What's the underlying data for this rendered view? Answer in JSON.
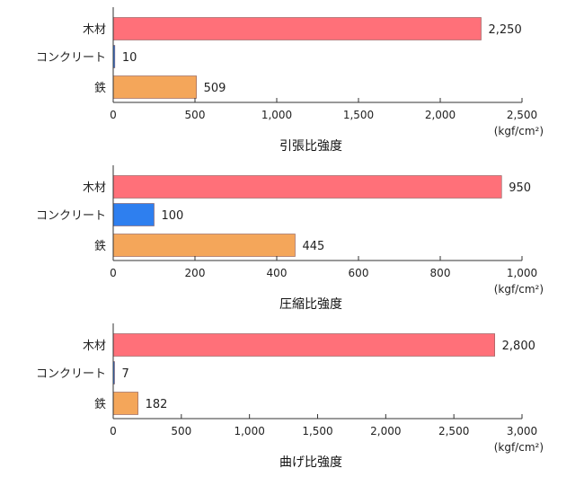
{
  "colors": {
    "wood": "#ff7079",
    "concrete": "#2e7fef",
    "iron": "#f4a65a",
    "axis": "#333333",
    "bar_stroke": "#8a5a5a"
  },
  "chart_data": [
    {
      "type": "bar",
      "orientation": "horizontal",
      "title": "引張比強度",
      "unit": "(kgf/cm²)",
      "categories": [
        "木材",
        "コンクリート",
        "鉄"
      ],
      "values": [
        2250,
        10,
        509
      ],
      "value_labels": [
        "2,250",
        "10",
        "509"
      ],
      "xlim": [
        0,
        2500
      ],
      "ticks": [
        0,
        500,
        1000,
        1500,
        2000,
        2500
      ],
      "tick_labels": [
        "0",
        "500",
        "1,000",
        "1,500",
        "2,000",
        "2,500"
      ],
      "grid": false
    },
    {
      "type": "bar",
      "orientation": "horizontal",
      "title": "圧縮比強度",
      "unit": "(kgf/cm²)",
      "categories": [
        "木材",
        "コンクリート",
        "鉄"
      ],
      "values": [
        950,
        100,
        445
      ],
      "value_labels": [
        "950",
        "100",
        "445"
      ],
      "xlim": [
        0,
        1000
      ],
      "ticks": [
        0,
        200,
        400,
        600,
        800,
        1000
      ],
      "tick_labels": [
        "0",
        "200",
        "400",
        "600",
        "800",
        "1,000"
      ],
      "grid": false
    },
    {
      "type": "bar",
      "orientation": "horizontal",
      "title": "曲げ比強度",
      "unit": "(kgf/cm²)",
      "categories": [
        "木材",
        "コンクリート",
        "鉄"
      ],
      "values": [
        2800,
        7,
        182
      ],
      "value_labels": [
        "2,800",
        "7",
        "182"
      ],
      "xlim": [
        0,
        3000
      ],
      "ticks": [
        0,
        500,
        1000,
        1500,
        2000,
        2500,
        3000
      ],
      "tick_labels": [
        "0",
        "500",
        "1,000",
        "1,500",
        "2,000",
        "2,500",
        "3,000"
      ],
      "grid": false
    }
  ]
}
